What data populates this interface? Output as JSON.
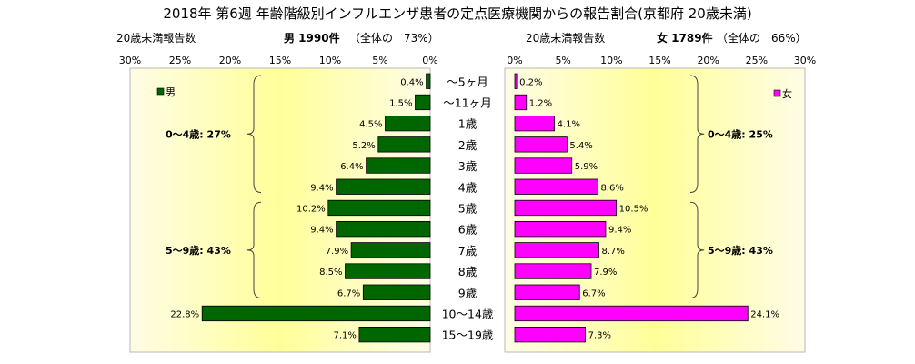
{
  "title": "2018年 第6週 年齢階級別インフルエンザ患者の定点医療機関からの報告割合(京都府 20歳未満)",
  "colors": {
    "male": "#006600",
    "female": "#ff00ff",
    "panel_edge": "#fffbd0",
    "panel_center": "#ffffbf",
    "panel_yellow": "#ffff90"
  },
  "chart_data": [
    {
      "type": "bar",
      "orientation": "horizontal",
      "panel": "left",
      "direction": "right-to-left",
      "count_label": "20歳未満報告数",
      "summary": "男 1990件",
      "share": "（全体の　73%）",
      "legend": "男",
      "legend_placement": "top-left",
      "xlim": [
        0,
        30
      ],
      "ticks": [
        "30%",
        "25%",
        "20%",
        "15%",
        "10%",
        "5%",
        "0%"
      ],
      "tick_values": [
        30,
        25,
        20,
        15,
        10,
        5,
        0
      ],
      "categories": [
        "～5ヶ月",
        "～11ヶ月",
        "1歳",
        "2歳",
        "3歳",
        "4歳",
        "5歳",
        "6歳",
        "7歳",
        "8歳",
        "9歳",
        "10～14歳",
        "15～19歳"
      ],
      "values": [
        0.4,
        1.5,
        4.5,
        5.2,
        6.4,
        9.4,
        10.2,
        9.4,
        7.9,
        8.5,
        6.7,
        22.8,
        7.1
      ],
      "labels": [
        "0.4%",
        "1.5%",
        "4.5%",
        "5.2%",
        "6.4%",
        "9.4%",
        "10.2%",
        "9.4%",
        "7.9%",
        "8.5%",
        "6.7%",
        "22.8%",
        "7.1%"
      ],
      "groups": [
        {
          "label": "0～4歳: 27%",
          "from": 0,
          "to": 5
        },
        {
          "label": "5～9歳: 43%",
          "from": 6,
          "to": 10
        }
      ]
    },
    {
      "type": "bar",
      "orientation": "horizontal",
      "panel": "right",
      "direction": "left-to-right",
      "count_label": "20歳未満報告数",
      "summary": "女 1789件",
      "share": "（全体の　66%）",
      "legend": "女",
      "legend_placement": "top-right",
      "xlim": [
        0,
        30
      ],
      "ticks": [
        "0%",
        "5%",
        "10%",
        "15%",
        "20%",
        "25%",
        "30%"
      ],
      "tick_values": [
        0,
        5,
        10,
        15,
        20,
        25,
        30
      ],
      "categories": [
        "～5ヶ月",
        "～11ヶ月",
        "1歳",
        "2歳",
        "3歳",
        "4歳",
        "5歳",
        "6歳",
        "7歳",
        "8歳",
        "9歳",
        "10～14歳",
        "15～19歳"
      ],
      "values": [
        0.2,
        1.2,
        4.1,
        5.4,
        5.9,
        8.6,
        10.5,
        9.4,
        8.7,
        7.9,
        6.7,
        24.1,
        7.3
      ],
      "labels": [
        "0.2%",
        "1.2%",
        "4.1%",
        "5.4%",
        "5.9%",
        "8.6%",
        "10.5%",
        "9.4%",
        "8.7%",
        "7.9%",
        "6.7%",
        "24.1%",
        "7.3%"
      ],
      "groups": [
        {
          "label": "0～4歳: 25%",
          "from": 0,
          "to": 5
        },
        {
          "label": "5～9歳: 43%",
          "from": 6,
          "to": 10
        }
      ]
    }
  ]
}
